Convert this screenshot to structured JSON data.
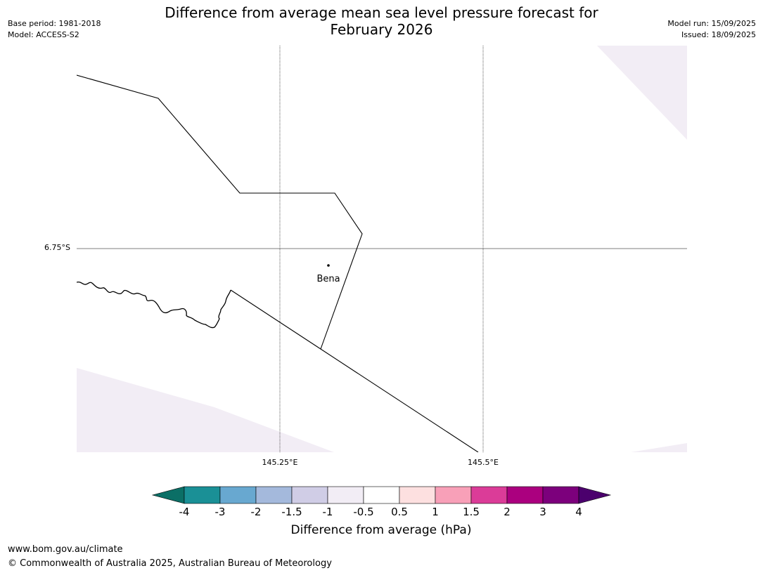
{
  "header": {
    "title_line1": "Difference from average mean sea level pressure forecast for",
    "title_line2": "February 2026",
    "base_period": "Base period: 1981-2018",
    "model": "Model: ACCESS-S2",
    "model_run": "Model run: 15/09/2025",
    "issued": "Issued: 18/09/2025"
  },
  "map": {
    "lat_label": "6.75°S",
    "lon_labels": [
      "145.25°E",
      "145.5°E"
    ],
    "place": "Bena"
  },
  "colorbar": {
    "ticks": [
      "-4",
      "-3",
      "-2",
      "-1.5",
      "-1",
      "-0.5",
      "0.5",
      "1",
      "1.5",
      "2",
      "3",
      "4"
    ],
    "colors": [
      "#1a9096",
      "#68a8d0",
      "#a4b9dc",
      "#d0cde6",
      "#f2edf5",
      "#ffffff",
      "#fde0e0",
      "#f8a0b8",
      "#db3c98",
      "#ab007f",
      "#7c007c"
    ],
    "under_color": "#0b6f66",
    "over_color": "#4b006d",
    "label": "Difference from average (hPa)"
  },
  "footer": {
    "url": "www.bom.gov.au/climate",
    "copyright": "© Commonwealth of Australia 2025, Australian Bureau of Meteorology"
  }
}
